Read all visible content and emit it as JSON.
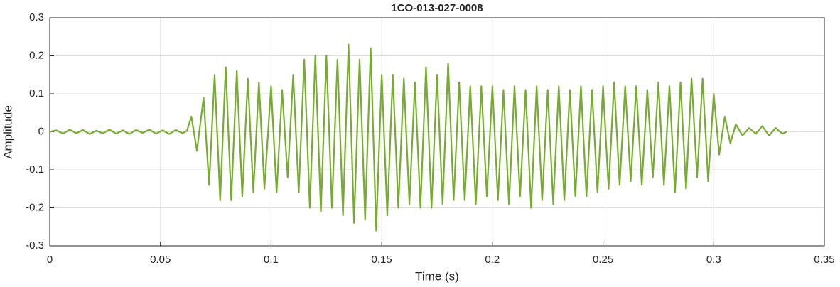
{
  "chart_data": {
    "type": "line",
    "title": "1CO-013-027-0008",
    "x_label": "Time (s)",
    "y_label": "Amplitude",
    "color": "#77ac30",
    "grid": true,
    "xlim": [
      0,
      0.35
    ],
    "xticks": [
      0,
      0.05,
      0.1,
      0.15,
      0.2,
      0.25,
      0.3,
      0.35
    ],
    "ylim": [
      -0.3,
      0.3
    ],
    "yticks": [
      -0.3,
      -0.2,
      -0.1,
      0,
      0.1,
      0.2,
      0.3
    ],
    "x": [
      0,
      0.003,
      0.006,
      0.009,
      0.012,
      0.015,
      0.018,
      0.021,
      0.024,
      0.027,
      0.03,
      0.033,
      0.036,
      0.039,
      0.042,
      0.045,
      0.048,
      0.051,
      0.054,
      0.057,
      0.06,
      0.062,
      0.064,
      0.0665,
      0.0695,
      0.072,
      0.0745,
      0.077,
      0.0795,
      0.082,
      0.0845,
      0.087,
      0.0895,
      0.092,
      0.0945,
      0.097,
      0.1,
      0.1025,
      0.105,
      0.1075,
      0.11,
      0.1125,
      0.115,
      0.1175,
      0.12,
      0.1225,
      0.125,
      0.1275,
      0.13,
      0.1325,
      0.135,
      0.1375,
      0.14,
      0.1425,
      0.145,
      0.1475,
      0.15,
      0.1525,
      0.155,
      0.1575,
      0.16,
      0.1625,
      0.165,
      0.1675,
      0.17,
      0.1725,
      0.175,
      0.1775,
      0.18,
      0.1825,
      0.185,
      0.1875,
      0.19,
      0.1925,
      0.195,
      0.1975,
      0.2,
      0.2025,
      0.205,
      0.2075,
      0.21,
      0.2125,
      0.215,
      0.2175,
      0.22,
      0.2225,
      0.225,
      0.2275,
      0.23,
      0.2325,
      0.235,
      0.2375,
      0.24,
      0.2425,
      0.245,
      0.2475,
      0.25,
      0.2525,
      0.255,
      0.2575,
      0.26,
      0.2625,
      0.265,
      0.2675,
      0.27,
      0.2725,
      0.275,
      0.2775,
      0.28,
      0.2825,
      0.285,
      0.2875,
      0.29,
      0.2925,
      0.295,
      0.2975,
      0.3,
      0.3025,
      0.305,
      0.3075,
      0.31,
      0.313,
      0.316,
      0.319,
      0.322,
      0.325,
      0.328,
      0.331,
      0.333
    ],
    "values": [
      0,
      0.004,
      -0.005,
      0.006,
      -0.004,
      0.005,
      -0.006,
      0.003,
      -0.004,
      0.006,
      -0.005,
      0.004,
      -0.006,
      0.005,
      -0.003,
      0.006,
      -0.005,
      0.004,
      -0.006,
      0.005,
      -0.004,
      0.003,
      0.04,
      -0.05,
      0.09,
      -0.14,
      0.15,
      -0.18,
      0.17,
      -0.18,
      0.16,
      -0.17,
      0.14,
      -0.16,
      0.13,
      -0.15,
      0.12,
      -0.16,
      0.11,
      -0.12,
      0.15,
      -0.16,
      0.19,
      -0.2,
      0.2,
      -0.21,
      0.2,
      -0.2,
      0.19,
      -0.22,
      0.23,
      -0.24,
      0.19,
      -0.23,
      0.22,
      -0.26,
      0.15,
      -0.22,
      0.15,
      -0.2,
      0.14,
      -0.19,
      0.13,
      -0.2,
      0.17,
      -0.2,
      0.15,
      -0.19,
      0.18,
      -0.18,
      0.13,
      -0.18,
      0.12,
      -0.19,
      0.12,
      -0.17,
      0.12,
      -0.18,
      0.11,
      -0.19,
      0.12,
      -0.17,
      0.11,
      -0.2,
      0.12,
      -0.18,
      0.11,
      -0.19,
      0.12,
      -0.18,
      0.11,
      -0.17,
      0.12,
      -0.17,
      0.11,
      -0.16,
      0.12,
      -0.15,
      0.13,
      -0.14,
      0.12,
      -0.13,
      0.12,
      -0.14,
      0.11,
      -0.12,
      0.13,
      -0.14,
      0.12,
      -0.16,
      0.13,
      -0.15,
      0.14,
      -0.12,
      0.14,
      -0.13,
      0.1,
      -0.06,
      0.04,
      -0.03,
      0.02,
      -0.01,
      0.01,
      -0.005,
      0.015,
      -0.01,
      0.01,
      -0.005,
      0
    ]
  }
}
